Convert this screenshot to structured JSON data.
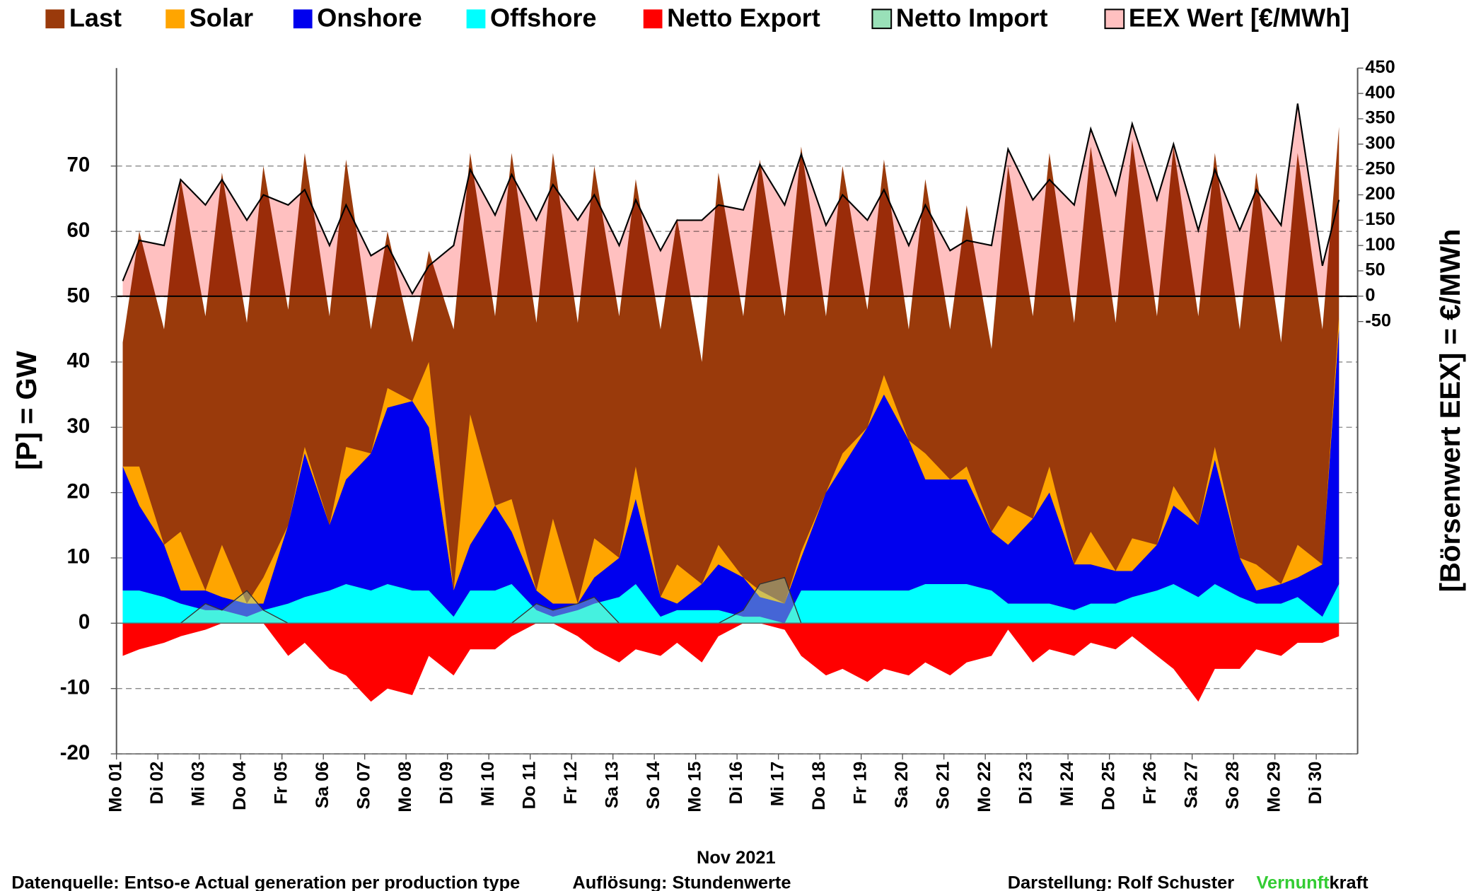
{
  "chart_data": {
    "type": "stacked-area",
    "xlabel": "Nov 2021",
    "ylabel": "[P]  =  GW",
    "y2label": "[Börsenwert  EEX]  =  €/MWh",
    "x": [
      1.15,
      1.55,
      2.15,
      2.55,
      3.15,
      3.55,
      4.15,
      4.55,
      5.15,
      5.55,
      6.15,
      6.55,
      7.15,
      7.55,
      8.15,
      8.55,
      9.15,
      9.55,
      10.15,
      10.55,
      11.15,
      11.55,
      12.15,
      12.55,
      13.15,
      13.55,
      14.15,
      14.55,
      15.15,
      15.55,
      16.15,
      16.55,
      17.15,
      17.55,
      18.15,
      18.55,
      19.15,
      19.55,
      20.15,
      20.55,
      21.15,
      21.55,
      22.15,
      22.55,
      23.15,
      23.55,
      24.15,
      24.55,
      25.15,
      25.55,
      26.15,
      26.55,
      27.15,
      27.55,
      28.15,
      28.55,
      29.15,
      29.55,
      30.15,
      30.55
    ],
    "xlim": [
      1,
      31
    ],
    "xticks": [
      {
        "value": 1,
        "label": "Mo 01"
      },
      {
        "value": 2,
        "label": "Di 02"
      },
      {
        "value": 3,
        "label": "Mi 03"
      },
      {
        "value": 4,
        "label": "Do 04"
      },
      {
        "value": 5,
        "label": "Fr 05"
      },
      {
        "value": 6,
        "label": "Sa 06"
      },
      {
        "value": 7,
        "label": "So 07"
      },
      {
        "value": 8,
        "label": "Mo 08"
      },
      {
        "value": 9,
        "label": "Di 09"
      },
      {
        "value": 10,
        "label": "Mi 10"
      },
      {
        "value": 11,
        "label": "Do 11"
      },
      {
        "value": 12,
        "label": "Fr 12"
      },
      {
        "value": 13,
        "label": "Sa 13"
      },
      {
        "value": 14,
        "label": "So 14"
      },
      {
        "value": 15,
        "label": "Mo 15"
      },
      {
        "value": 16,
        "label": "Di 16"
      },
      {
        "value": 17,
        "label": "Mi 17"
      },
      {
        "value": 18,
        "label": "Do 18"
      },
      {
        "value": 19,
        "label": "Fr 19"
      },
      {
        "value": 20,
        "label": "Sa 20"
      },
      {
        "value": 21,
        "label": "So 21"
      },
      {
        "value": 22,
        "label": "Mo 22"
      },
      {
        "value": 23,
        "label": "Di 23"
      },
      {
        "value": 24,
        "label": "Mi 24"
      },
      {
        "value": 25,
        "label": "Do 25"
      },
      {
        "value": 26,
        "label": "Fr 26"
      },
      {
        "value": 27,
        "label": "Sa 27"
      },
      {
        "value": 28,
        "label": "So 28"
      },
      {
        "value": 29,
        "label": "Mo 29"
      },
      {
        "value": 30,
        "label": "Di 30"
      }
    ],
    "ylim": [
      -20,
      85
    ],
    "yticks": [
      -20,
      -10,
      0,
      10,
      20,
      30,
      40,
      50,
      60,
      70
    ],
    "y2lim": [
      -903,
      450
    ],
    "y2ticks": [
      -50,
      0,
      50,
      100,
      150,
      200,
      250,
      300,
      350,
      400,
      450
    ],
    "grid": true,
    "series": [
      {
        "name": "Last",
        "color": "#9a3a0b",
        "values": [
          43,
          60,
          45,
          68,
          47,
          69,
          46,
          70,
          48,
          72,
          47,
          71,
          45,
          60,
          43,
          57,
          45,
          72,
          47,
          72,
          46,
          72,
          46,
          70,
          47,
          68,
          45,
          62,
          40,
          69,
          47,
          71,
          47,
          73,
          47,
          70,
          48,
          71,
          45,
          68,
          45,
          64,
          42,
          70,
          47,
          72,
          46,
          73,
          46,
          74,
          47,
          73,
          47,
          72,
          45,
          69,
          43,
          72,
          45,
          76
        ]
      },
      {
        "name": "Solar",
        "color": "#ffa500",
        "values": [
          0,
          6,
          0,
          9,
          0,
          8,
          0,
          4,
          0,
          1,
          0,
          5,
          0,
          3,
          0,
          10,
          0,
          20,
          0,
          5,
          0,
          13,
          0,
          6,
          0,
          5,
          0,
          6,
          0,
          3,
          0,
          1,
          0,
          1,
          0,
          2,
          0,
          3,
          0,
          4,
          0,
          2,
          0,
          6,
          0,
          4,
          0,
          5,
          0,
          5,
          0,
          3,
          0,
          2,
          0,
          4,
          0,
          5,
          0,
          2
        ]
      },
      {
        "name": "Onshore",
        "color": "#0000ee",
        "values": [
          19,
          13,
          8,
          2,
          3,
          2,
          2,
          1,
          12,
          22,
          10,
          16,
          21,
          27,
          29,
          25,
          4,
          7,
          13,
          8,
          3,
          2,
          1,
          4,
          6,
          13,
          3,
          1,
          4,
          7,
          6,
          3,
          3,
          5,
          15,
          19,
          25,
          30,
          23,
          16,
          16,
          16,
          9,
          9,
          13,
          17,
          7,
          6,
          5,
          4,
          7,
          12,
          11,
          19,
          6,
          2,
          3,
          3,
          8,
          39
        ]
      },
      {
        "name": "Offshore",
        "color": "#00ffff",
        "values": [
          5,
          5,
          4,
          3,
          2,
          2,
          1,
          2,
          3,
          4,
          5,
          6,
          5,
          6,
          5,
          5,
          1,
          5,
          5,
          6,
          2,
          1,
          2,
          3,
          4,
          6,
          1,
          2,
          2,
          2,
          1,
          1,
          0,
          5,
          5,
          5,
          5,
          5,
          5,
          6,
          6,
          6,
          5,
          3,
          3,
          3,
          2,
          3,
          3,
          4,
          5,
          6,
          4,
          6,
          4,
          3,
          3,
          4,
          1,
          6
        ]
      },
      {
        "name": "Netto Export",
        "color": "#ff0000",
        "values": [
          -5,
          -4,
          -3,
          -2,
          -1,
          0,
          0,
          0,
          -5,
          -3,
          -7,
          -8,
          -12,
          -10,
          -11,
          -5,
          -8,
          -4,
          -4,
          -2,
          0,
          0,
          -2,
          -4,
          -6,
          -4,
          -5,
          -3,
          -6,
          -2,
          0,
          0,
          -1,
          -5,
          -8,
          -7,
          -9,
          -7,
          -8,
          -6,
          -8,
          -6,
          -5,
          -1,
          -6,
          -4,
          -5,
          -3,
          -4,
          -2,
          -5,
          -7,
          -12,
          -7,
          -7,
          -4,
          -5,
          -3,
          -3,
          -2
        ]
      },
      {
        "name": "Netto Import",
        "color": "#99e0b8",
        "values": [
          0,
          0,
          0,
          0,
          3,
          2,
          5,
          2,
          0,
          0,
          0,
          0,
          0,
          0,
          0,
          0,
          0,
          0,
          0,
          0,
          3,
          2,
          3,
          4,
          0,
          0,
          0,
          0,
          0,
          0,
          2,
          6,
          7,
          0,
          0,
          0,
          0,
          0,
          0,
          0,
          0,
          0,
          0,
          0,
          0,
          0,
          0,
          0,
          0,
          0,
          0,
          0,
          0,
          0,
          0,
          0,
          0,
          0,
          0,
          0
        ]
      },
      {
        "name": "EEX Wert [€/MWh]",
        "color": "#ffc0c0",
        "line_color": "#000000",
        "axis": "y2",
        "values": [
          30,
          110,
          100,
          230,
          180,
          230,
          150,
          200,
          180,
          210,
          100,
          180,
          80,
          100,
          5,
          60,
          100,
          250,
          160,
          240,
          150,
          220,
          150,
          200,
          100,
          190,
          90,
          150,
          150,
          180,
          170,
          260,
          180,
          280,
          140,
          200,
          150,
          210,
          100,
          180,
          90,
          110,
          100,
          290,
          190,
          230,
          180,
          330,
          200,
          340,
          190,
          300,
          130,
          250,
          130,
          210,
          140,
          380,
          60,
          190
        ]
      }
    ],
    "annotations": [
      "Datenquelle: Entso-e  Actual generation per production type",
      "Auflösung: Stundenwerte",
      "Darstellung:  Rolf Schuster",
      "Vernunft",
      "kraft"
    ],
    "annotation_colors": [
      "#000000",
      "#000000",
      "#000000",
      "#33cc33",
      "#000000"
    ]
  }
}
